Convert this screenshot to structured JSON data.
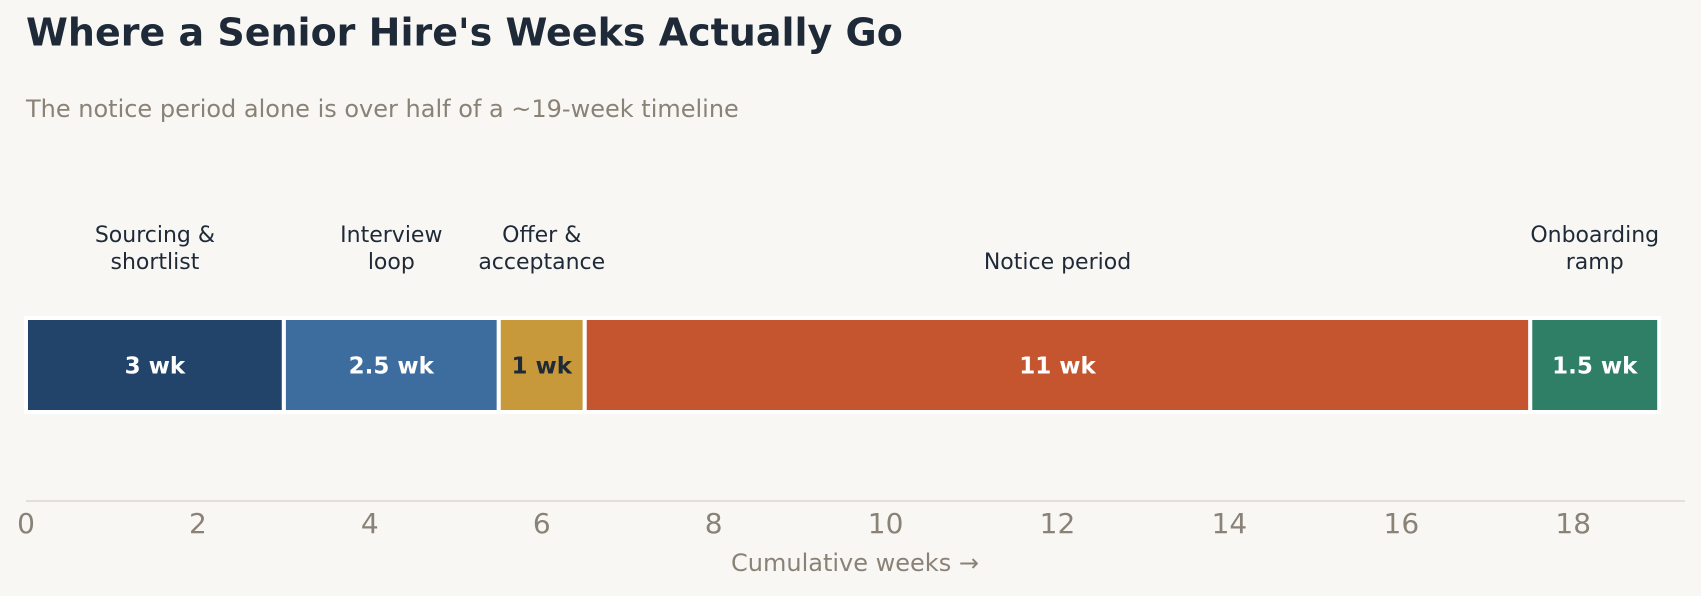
{
  "chart_data": {
    "type": "bar",
    "orientation": "horizontal",
    "stacked": true,
    "title": "Where a Senior Hire's Weeks Actually Go",
    "subtitle": "The notice period alone is over half of a ~19-week timeline",
    "xlabel": "Cumulative weeks  →",
    "categories": [
      "Sourcing &\nshortlist",
      "Interview\nloop",
      "Offer &\nacceptance",
      "Notice period",
      "Onboarding\nramp"
    ],
    "values": [
      3,
      2.5,
      1,
      11,
      1.5
    ],
    "value_labels": [
      "3 wk",
      "2.5 wk",
      "1 wk",
      "11 wk",
      "1.5 wk"
    ],
    "colors": [
      "#22446b",
      "#3d6c9e",
      "#c8993a",
      "#c4552f",
      "#2f7f66"
    ],
    "xlim": [
      0,
      19.3
    ],
    "xticks": [
      0,
      2,
      4,
      6,
      8,
      10,
      12,
      14,
      16,
      18
    ]
  }
}
